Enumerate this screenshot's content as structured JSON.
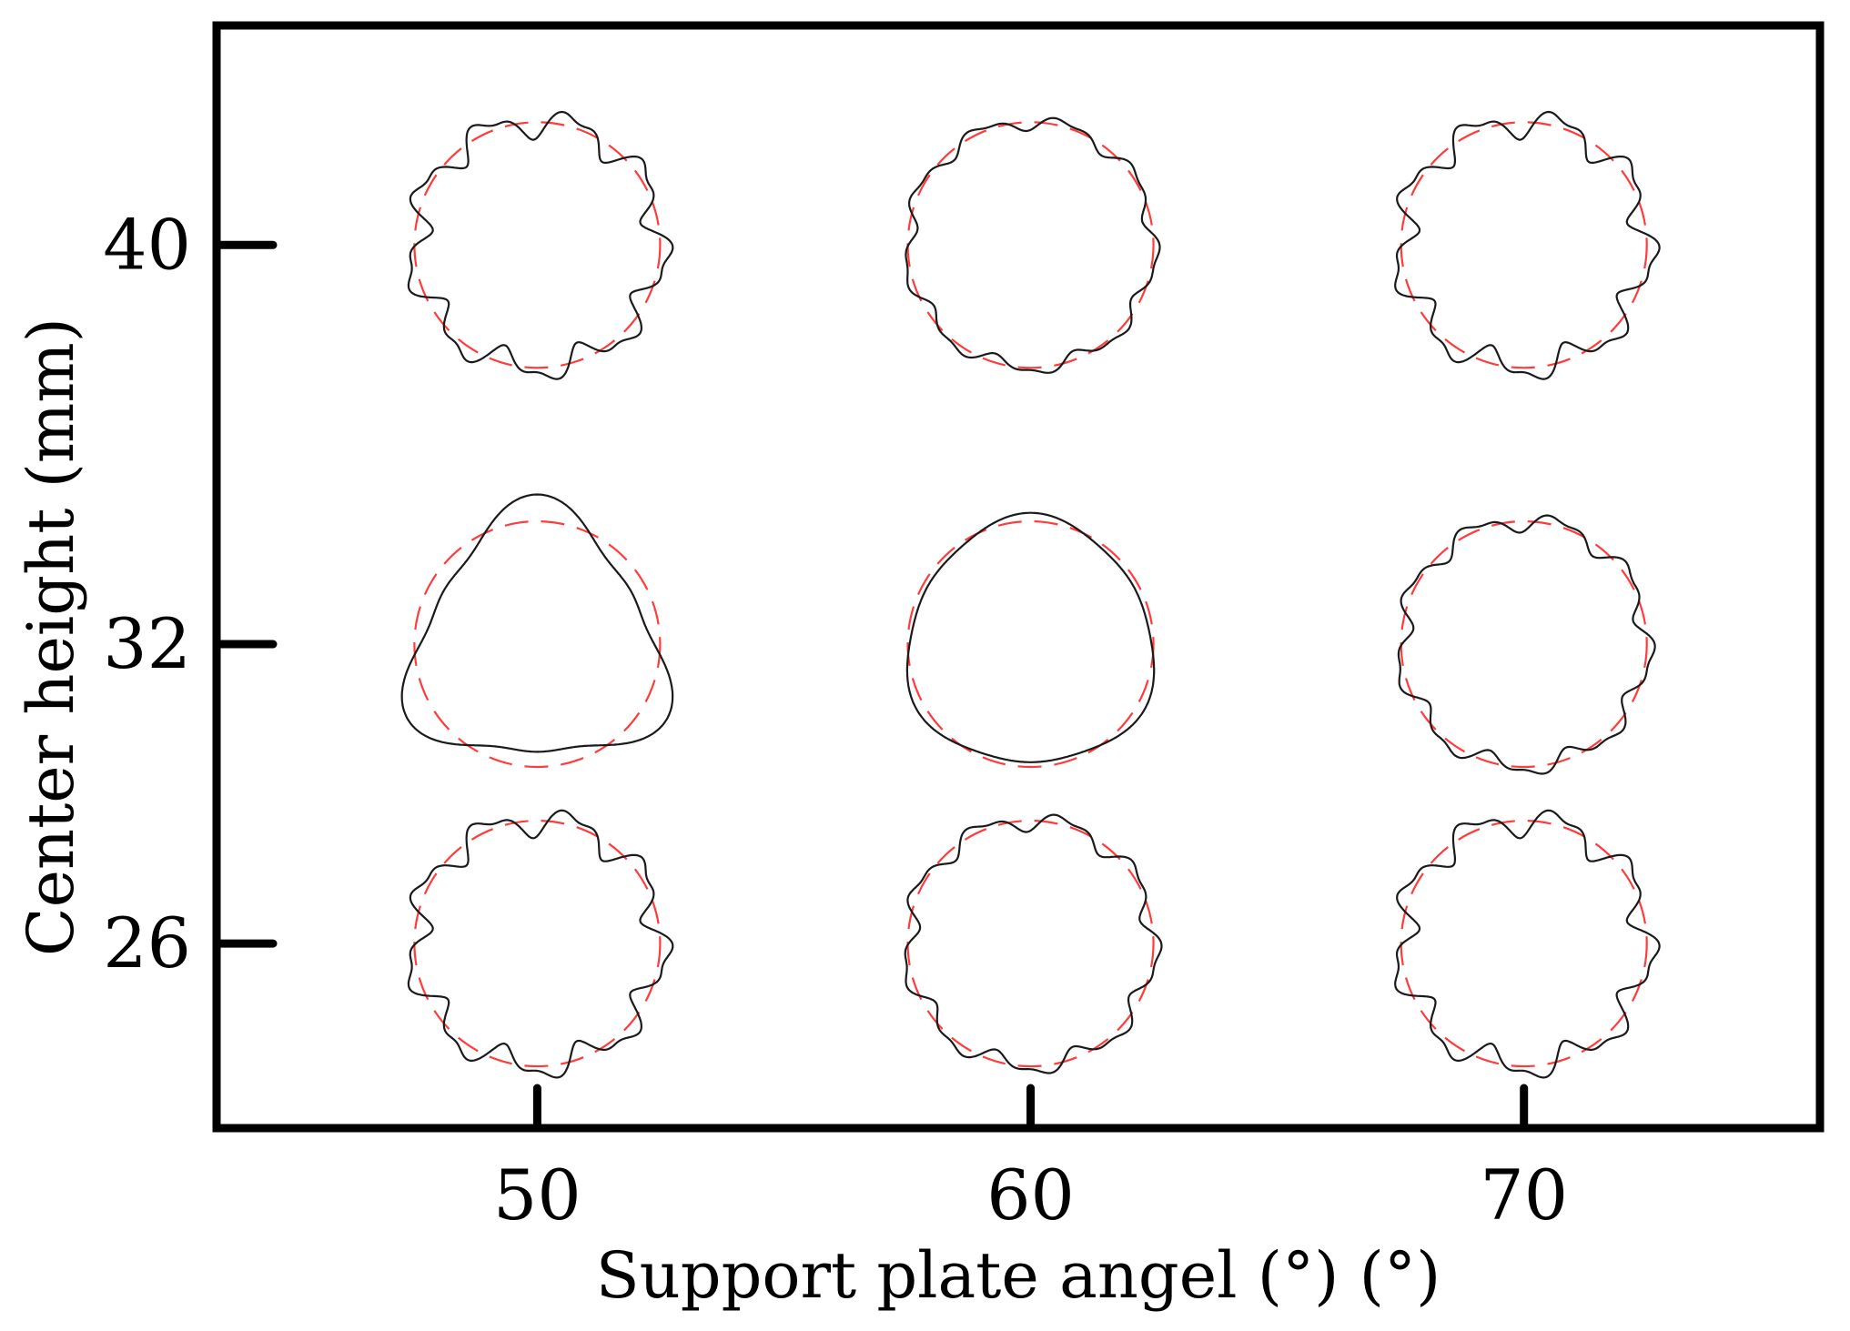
{
  "chart_data": {
    "type": "scatter",
    "title": "",
    "xlabel": "Support plate angel (°) (°)",
    "ylabel": "Center height (mm)",
    "x_ticks": [
      50,
      60,
      70
    ],
    "y_ticks": [
      40,
      32,
      26
    ],
    "xlim": [
      43.5,
      76
    ],
    "ylim": [
      22.3,
      44.4
    ],
    "grid": false,
    "legend": "none",
    "colors": {
      "profile": "#1a1a1a",
      "reference_circle": "#ff3b3b"
    },
    "series": [
      {
        "cells": [
          {
            "x": 50,
            "y": 40,
            "lobes": 9,
            "amplitude": 0.14,
            "tri": 0
          },
          {
            "x": 60,
            "y": 40,
            "lobes": 9,
            "amplitude": 0.07,
            "tri": 0
          },
          {
            "x": 70,
            "y": 40,
            "lobes": 9,
            "amplitude": 0.14,
            "tri": 0
          },
          {
            "x": 50,
            "y": 32,
            "lobes": 3,
            "amplitude": 0,
            "tri": 0.19
          },
          {
            "x": 60,
            "y": 32,
            "lobes": 3,
            "amplitude": 0,
            "tri": 0.06
          },
          {
            "x": 70,
            "y": 32,
            "lobes": 9,
            "amplitude": 0.09,
            "tri": 0
          },
          {
            "x": 50,
            "y": 26,
            "lobes": 9,
            "amplitude": 0.14,
            "tri": 0
          },
          {
            "x": 60,
            "y": 26,
            "lobes": 9,
            "amplitude": 0.09,
            "tri": 0
          },
          {
            "x": 70,
            "y": 26,
            "lobes": 9,
            "amplitude": 0.14,
            "tri": 0
          }
        ]
      }
    ]
  }
}
